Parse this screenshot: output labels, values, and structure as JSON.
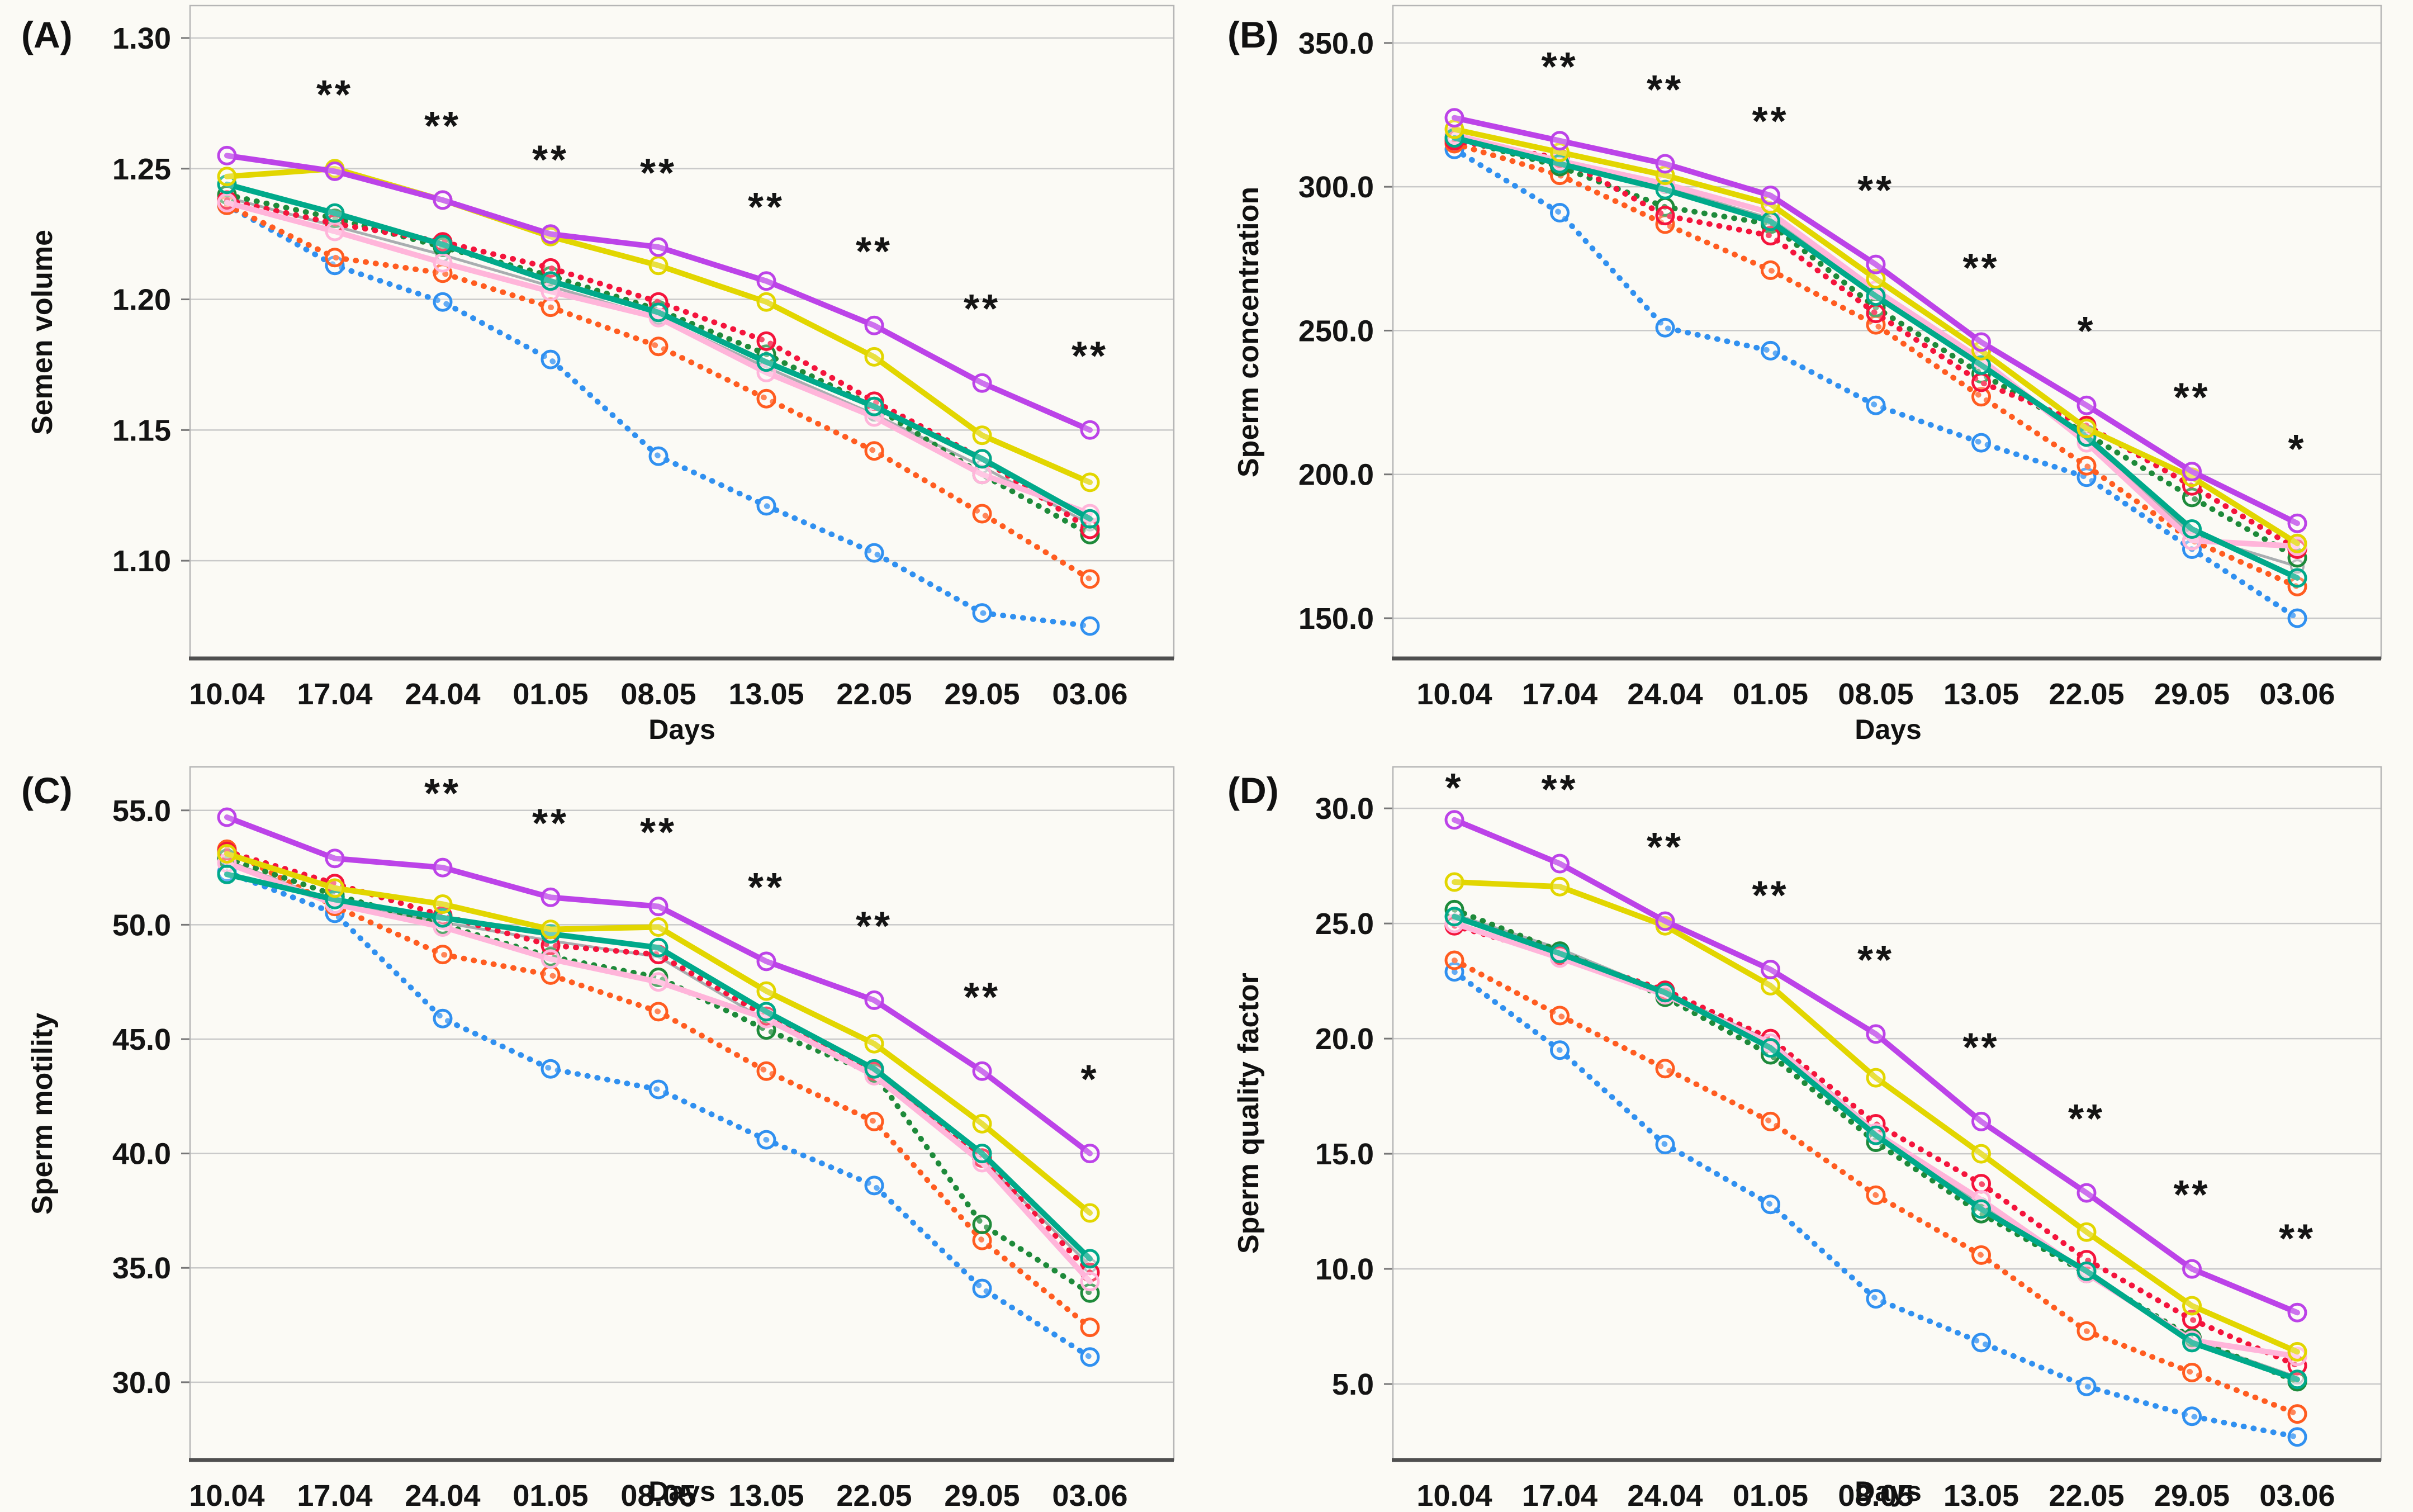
{
  "figure": {
    "background": "#fbfaf5",
    "gridline_color": "#c9c9c9",
    "frame_color": "#b5b5b5",
    "axis_line_color": "#4f4f4f",
    "tick_color": "#777777",
    "text_color": "#141414",
    "x_axis_title": "Days",
    "x_categories": [
      "10.04",
      "17.04",
      "24.04",
      "01.05",
      "08.05",
      "13.05",
      "22.05",
      "29.05",
      "03.06"
    ],
    "marker_shape": "open-circle",
    "series_styles": {
      "gray": {
        "color": "#a9adb0",
        "style": "solid",
        "width": 5
      },
      "blue": {
        "color": "#3090f0",
        "style": "dotted",
        "width": 10
      },
      "orange": {
        "color": "#ff5c20",
        "style": "dotted",
        "width": 10
      },
      "green": {
        "color": "#1e8a3a",
        "style": "dotted",
        "width": 10
      },
      "red": {
        "color": "#f4143c",
        "style": "dotted",
        "width": 10
      },
      "pink": {
        "color": "#ffb5da",
        "style": "solid",
        "width": 10
      },
      "teal": {
        "color": "#00a98a",
        "style": "solid",
        "width": 10
      },
      "yellow": {
        "color": "#e2d600",
        "style": "solid",
        "width": 10
      },
      "purple": {
        "color": "#bc43e8",
        "style": "solid",
        "width": 10
      }
    }
  },
  "chart_data": [
    {
      "id": "A",
      "type": "line",
      "letter": "(A)",
      "ylabel": "Semen volume",
      "xlabel": "Days",
      "legend": "none",
      "grid": true,
      "ylim": [
        1.0626,
        1.3124
      ],
      "y_ticks": [
        1.3,
        1.25,
        1.2,
        1.15,
        1.1
      ],
      "y_tick_labels": [
        "1.30",
        "1.25",
        "1.20",
        "1.15",
        "1.10"
      ],
      "series": [
        {
          "name": "gray",
          "values": [
            1.239,
            1.228,
            1.217,
            1.205,
            1.193,
            1.174,
            1.156,
            1.136,
            1.114
          ]
        },
        {
          "name": "blue",
          "values": [
            1.236,
            1.213,
            1.199,
            1.177,
            1.14,
            1.121,
            1.103,
            1.08,
            1.075
          ]
        },
        {
          "name": "orange",
          "values": [
            1.236,
            1.216,
            1.21,
            1.197,
            1.182,
            1.162,
            1.142,
            1.118,
            1.093
          ]
        },
        {
          "name": "green",
          "values": [
            1.24,
            1.231,
            1.22,
            1.209,
            1.196,
            1.179,
            1.159,
            1.133,
            1.11
          ]
        },
        {
          "name": "red",
          "values": [
            1.238,
            1.229,
            1.222,
            1.212,
            1.199,
            1.184,
            1.161,
            1.139,
            1.112
          ]
        },
        {
          "name": "pink",
          "values": [
            1.237,
            1.226,
            1.214,
            1.203,
            1.193,
            1.172,
            1.155,
            1.133,
            1.118
          ]
        },
        {
          "name": "teal",
          "values": [
            1.244,
            1.233,
            1.221,
            1.207,
            1.195,
            1.176,
            1.159,
            1.139,
            1.116
          ]
        },
        {
          "name": "yellow",
          "values": [
            1.247,
            1.25,
            1.238,
            1.224,
            1.213,
            1.199,
            1.178,
            1.148,
            1.13
          ]
        },
        {
          "name": "purple",
          "values": [
            1.255,
            1.249,
            1.238,
            1.225,
            1.22,
            1.207,
            1.19,
            1.168,
            1.15
          ]
        }
      ],
      "annotations": [
        {
          "x": "17.04",
          "x_index": 1,
          "text": "**"
        },
        {
          "x": "24.04",
          "x_index": 2,
          "text": "**"
        },
        {
          "x": "01.05",
          "x_index": 3,
          "text": "**"
        },
        {
          "x": "08.05",
          "x_index": 4,
          "text": "**"
        },
        {
          "x": "13.05",
          "x_index": 5,
          "text": "**"
        },
        {
          "x": "22.05",
          "x_index": 6,
          "text": "**"
        },
        {
          "x": "29.05",
          "x_index": 7,
          "text": "**"
        },
        {
          "x": "03.06",
          "x_index": 8,
          "text": "**"
        }
      ]
    },
    {
      "id": "B",
      "type": "line",
      "letter": "(B)",
      "ylabel": "Sperm concentration",
      "xlabel": "Days",
      "legend": "none",
      "grid": true,
      "ylim": [
        136,
        363
      ],
      "y_ticks": [
        350,
        300,
        250,
        200,
        150
      ],
      "y_tick_labels": [
        "350.0",
        "300.0",
        "250.0",
        "200.0",
        "150.0"
      ],
      "series": [
        {
          "name": "gray",
          "values": [
            317,
            308,
            300,
            289,
            263,
            239,
            212,
            179,
            168
          ]
        },
        {
          "name": "blue",
          "values": [
            313,
            291,
            251,
            243,
            224,
            211,
            199,
            174,
            150
          ]
        },
        {
          "name": "orange",
          "values": [
            315,
            304,
            287,
            271,
            252,
            227,
            203,
            177,
            161
          ]
        },
        {
          "name": "green",
          "values": [
            317,
            307,
            293,
            287,
            258,
            235,
            214,
            192,
            171
          ]
        },
        {
          "name": "red",
          "values": [
            316,
            310,
            290,
            283,
            256,
            232,
            217,
            196,
            174
          ]
        },
        {
          "name": "pink",
          "values": [
            318,
            309,
            301,
            291,
            264,
            240,
            211,
            177,
            175
          ]
        },
        {
          "name": "teal",
          "values": [
            317,
            308,
            299,
            288,
            262,
            238,
            213,
            181,
            164
          ]
        },
        {
          "name": "yellow",
          "values": [
            320,
            312,
            304,
            294,
            268,
            243,
            216,
            199,
            176
          ]
        },
        {
          "name": "purple",
          "values": [
            324,
            316,
            308,
            297,
            273,
            246,
            224,
            201,
            183
          ]
        }
      ],
      "annotations": [
        {
          "x": "17.04",
          "x_index": 1,
          "text": "**"
        },
        {
          "x": "24.04",
          "x_index": 2,
          "text": "**"
        },
        {
          "x": "01.05",
          "x_index": 3,
          "text": "**"
        },
        {
          "x": "08.05",
          "x_index": 4,
          "text": "**"
        },
        {
          "x": "13.05",
          "x_index": 5,
          "text": "**"
        },
        {
          "x": "22.05",
          "x_index": 6,
          "text": "*"
        },
        {
          "x": "29.05",
          "x_index": 7,
          "text": "**"
        },
        {
          "x": "03.06",
          "x_index": 8,
          "text": "*"
        }
      ]
    },
    {
      "id": "C",
      "type": "line",
      "letter": "(C)",
      "ylabel": "Sperm motility",
      "xlabel": "Days",
      "legend": "none",
      "grid": true,
      "ylim": [
        26.6,
        56.9
      ],
      "y_ticks": [
        55,
        50,
        45,
        40,
        35,
        30
      ],
      "y_tick_labels": [
        "55.0",
        "50.0",
        "45.0",
        "40.0",
        "35.0",
        "30.0"
      ],
      "series": [
        {
          "name": "gray",
          "values": [
            52.8,
            51.0,
            50.1,
            49.3,
            48.6,
            45.8,
            43.5,
            39.7,
            35.1
          ]
        },
        {
          "name": "blue",
          "values": [
            52.3,
            50.5,
            45.9,
            43.7,
            42.8,
            40.6,
            38.6,
            34.1,
            31.1
          ]
        },
        {
          "name": "orange",
          "values": [
            53.3,
            50.8,
            48.7,
            47.8,
            46.2,
            43.6,
            41.4,
            36.2,
            32.4
          ]
        },
        {
          "name": "green",
          "values": [
            52.9,
            51.3,
            50.0,
            48.6,
            47.7,
            45.4,
            43.5,
            36.9,
            33.9
          ]
        },
        {
          "name": "red",
          "values": [
            53.2,
            51.8,
            50.4,
            49.1,
            48.7,
            46.0,
            43.6,
            39.8,
            34.8
          ]
        },
        {
          "name": "pink",
          "values": [
            52.7,
            50.9,
            49.9,
            48.5,
            47.5,
            45.9,
            43.4,
            39.6,
            34.4
          ]
        },
        {
          "name": "teal",
          "values": [
            52.2,
            51.1,
            50.3,
            49.6,
            49.0,
            46.2,
            43.7,
            40.0,
            35.4
          ]
        },
        {
          "name": "yellow",
          "values": [
            53.1,
            51.6,
            50.9,
            49.8,
            49.9,
            47.1,
            44.8,
            41.3,
            37.4
          ]
        },
        {
          "name": "purple",
          "values": [
            54.7,
            52.9,
            52.5,
            51.2,
            50.8,
            48.4,
            46.7,
            43.6,
            40.0
          ]
        }
      ],
      "annotations": [
        {
          "x": "24.04",
          "x_index": 2,
          "text": "**"
        },
        {
          "x": "01.05",
          "x_index": 3,
          "text": "**"
        },
        {
          "x": "08.05",
          "x_index": 4,
          "text": "**"
        },
        {
          "x": "13.05",
          "x_index": 5,
          "text": "**"
        },
        {
          "x": "22.05",
          "x_index": 6,
          "text": "**"
        },
        {
          "x": "29.05",
          "x_index": 7,
          "text": "**"
        },
        {
          "x": "03.06",
          "x_index": 8,
          "text": "*"
        }
      ]
    },
    {
      "id": "D",
      "type": "line",
      "letter": "(D)",
      "ylabel": "Sperm quality factor",
      "xlabel": "Days",
      "legend": "none",
      "grid": true,
      "ylim": [
        1.7,
        31.8
      ],
      "y_ticks": [
        30,
        25,
        20,
        15,
        10,
        5
      ],
      "y_tick_labels": [
        "30.0",
        "25.0",
        "20.0",
        "15.0",
        "10.0",
        "5.0"
      ],
      "series": [
        {
          "name": "gray",
          "values": [
            25.4,
            23.9,
            22.0,
            19.9,
            16.0,
            12.8,
            9.9,
            6.9,
            5.3
          ]
        },
        {
          "name": "blue",
          "values": [
            22.9,
            19.5,
            15.4,
            12.8,
            8.7,
            6.8,
            4.9,
            3.6,
            2.7
          ]
        },
        {
          "name": "orange",
          "values": [
            23.4,
            21.0,
            18.7,
            16.4,
            13.2,
            10.6,
            7.3,
            5.5,
            3.7
          ]
        },
        {
          "name": "green",
          "values": [
            25.6,
            23.8,
            21.8,
            19.3,
            15.5,
            12.4,
            9.8,
            7.0,
            5.1
          ]
        },
        {
          "name": "red",
          "values": [
            24.9,
            23.6,
            22.1,
            20.0,
            16.3,
            13.7,
            10.4,
            7.8,
            5.8
          ]
        },
        {
          "name": "pink",
          "values": [
            25.0,
            23.5,
            21.9,
            19.8,
            15.9,
            13.0,
            9.8,
            6.9,
            6.2
          ]
        },
        {
          "name": "teal",
          "values": [
            25.3,
            23.7,
            22.0,
            19.6,
            15.8,
            12.6,
            9.9,
            6.8,
            5.2
          ]
        },
        {
          "name": "yellow",
          "values": [
            26.8,
            26.6,
            24.9,
            22.3,
            18.3,
            15.0,
            11.6,
            8.4,
            6.4
          ]
        },
        {
          "name": "purple",
          "values": [
            29.5,
            27.6,
            25.1,
            23.0,
            20.2,
            16.4,
            13.3,
            10.0,
            8.1
          ]
        }
      ],
      "annotations": [
        {
          "x": "10.04",
          "x_index": 0,
          "text": "*"
        },
        {
          "x": "17.04",
          "x_index": 1,
          "text": "**"
        },
        {
          "x": "24.04",
          "x_index": 2,
          "text": "**"
        },
        {
          "x": "01.05",
          "x_index": 3,
          "text": "**"
        },
        {
          "x": "08.05",
          "x_index": 4,
          "text": "**"
        },
        {
          "x": "13.05",
          "x_index": 5,
          "text": "**"
        },
        {
          "x": "22.05",
          "x_index": 6,
          "text": "**"
        },
        {
          "x": "29.05",
          "x_index": 7,
          "text": "**"
        },
        {
          "x": "03.06",
          "x_index": 8,
          "text": "**"
        }
      ]
    }
  ]
}
